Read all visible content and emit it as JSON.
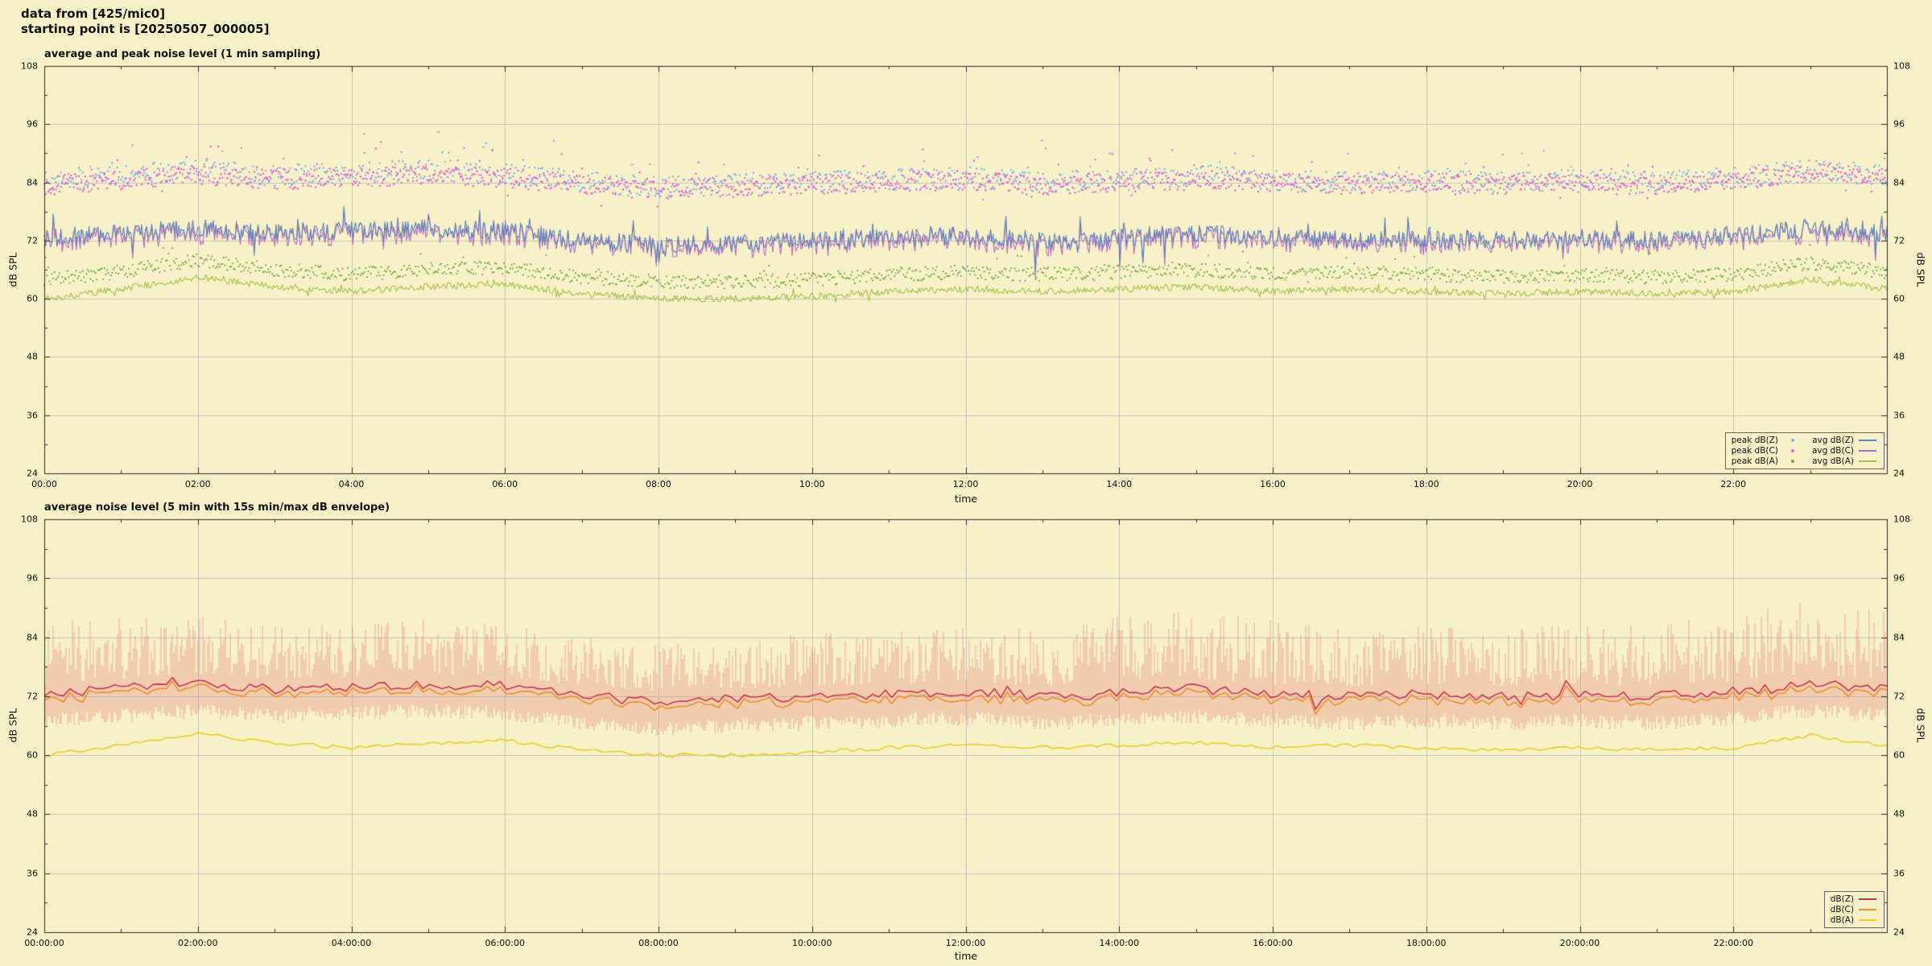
{
  "header": {
    "line1": "data from [425/mic0]",
    "line2": "starting point is [20250507_000005]"
  },
  "layout_colors": {
    "background": "#f8f1c8",
    "grid": "#9aa0b4",
    "frame": "#2b2b2b",
    "text": "#111111"
  },
  "chart_data": [
    {
      "type": "scatter+line",
      "title": "average and peak noise level (1 min sampling)",
      "xlabel": "time",
      "ylabel": "dB SPL",
      "ylim": [
        24,
        108
      ],
      "yticks": [
        24,
        36,
        48,
        60,
        72,
        84,
        96,
        108
      ],
      "x_range_hours": [
        0,
        24
      ],
      "grid": true,
      "legend_position": "bottom-right",
      "xticks": {
        "hours": [
          0,
          2,
          4,
          6,
          8,
          10,
          12,
          14,
          16,
          18,
          20,
          22
        ],
        "labels": [
          "00:00",
          "02:00",
          "04:00",
          "06:00",
          "08:00",
          "10:00",
          "12:00",
          "14:00",
          "16:00",
          "18:00",
          "20:00",
          "22:00"
        ]
      },
      "series": [
        {
          "name": "peak dB(Z)",
          "render": "dots",
          "color": "#7fb2e8",
          "samples": 1440,
          "dot_r": 1.2,
          "noise": 2.2,
          "outlier_chance": 0.05,
          "outlier_max": 7,
          "anchors": [
            84.5,
            85.5,
            86.5,
            85.5,
            86,
            86.5,
            86,
            84,
            83,
            83.5,
            84,
            84.5,
            85,
            84,
            84.5,
            85.5,
            84.5,
            84,
            84.5,
            84,
            84.5,
            84,
            85,
            86.5,
            85.5
          ]
        },
        {
          "name": "peak dB(C)",
          "render": "dots",
          "color": "#ea5fd4",
          "samples": 1440,
          "dot_r": 1.2,
          "noise": 2.0,
          "outlier_chance": 0.05,
          "outlier_max": 6,
          "anchors": [
            83.5,
            84.5,
            85.5,
            84.5,
            85,
            85.5,
            85,
            83.5,
            82.5,
            83,
            83.5,
            84,
            84.5,
            83.5,
            84,
            84.5,
            84,
            83.5,
            84,
            83.5,
            84,
            83.5,
            84.5,
            86,
            85
          ]
        },
        {
          "name": "peak dB(A)",
          "render": "dots",
          "color": "#72a847",
          "samples": 1440,
          "dot_r": 1.1,
          "noise": 1.4,
          "outlier_chance": 0.04,
          "outlier_max": 3.5,
          "anchors": [
            64,
            65.5,
            68,
            66,
            65,
            66,
            66.5,
            64.5,
            63.5,
            63.5,
            64,
            65,
            65.5,
            65,
            65.5,
            66,
            65,
            65.5,
            65,
            64.5,
            65,
            64.5,
            65,
            67.5,
            65.5
          ]
        },
        {
          "name": "avg dB(Z)",
          "render": "line",
          "color": "#5b84b8",
          "samples": 1440,
          "width": 1.1,
          "noise": 1.9,
          "spike_chance": 0.05,
          "spike_amp": 5,
          "anchors": [
            72.5,
            73.5,
            74.5,
            73.5,
            74,
            74.5,
            74,
            72,
            71,
            71.5,
            72,
            72.5,
            73,
            72,
            72.5,
            73.5,
            72.5,
            72,
            72.5,
            72,
            72.5,
            72,
            73,
            74.5,
            73.5
          ]
        },
        {
          "name": "avg dB(C)",
          "render": "line",
          "color": "#bb6cc3",
          "samples": 1440,
          "width": 1.1,
          "noise": 1.1,
          "follow": "avg dB(Z)",
          "offset": -0.6
        },
        {
          "name": "avg dB(A)",
          "render": "line",
          "color": "#a6bf4b",
          "samples": 1440,
          "width": 1.1,
          "noise": 0.7,
          "spike_chance": 0.04,
          "spike_amp": 1.5,
          "anchors": [
            60,
            62,
            64.5,
            62.5,
            61.5,
            62.5,
            63,
            61,
            60,
            60,
            60.5,
            61.5,
            62,
            61.5,
            62,
            62.5,
            61.5,
            62,
            61.5,
            61,
            61.5,
            61,
            61.5,
            64,
            62
          ]
        }
      ]
    },
    {
      "type": "line+envelope",
      "title": "average noise level (5 min with 15s min/max dB envelope)",
      "xlabel": "time",
      "ylabel": "dB SPL",
      "ylim": [
        24,
        108
      ],
      "yticks": [
        24,
        36,
        48,
        60,
        72,
        84,
        96,
        108
      ],
      "x_range_hours": [
        0,
        24
      ],
      "grid": true,
      "legend_position": "bottom-right",
      "xticks": {
        "hours": [
          0,
          2,
          4,
          6,
          8,
          10,
          12,
          14,
          16,
          18,
          20,
          22
        ],
        "labels": [
          "00:00:00",
          "02:00:00",
          "04:00:00",
          "06:00:00",
          "08:00:00",
          "10:00:00",
          "12:00:00",
          "14:00:00",
          "16:00:00",
          "18:00:00",
          "20:00:00",
          "22:00:00"
        ]
      },
      "envelope": {
        "color": "#e2837a",
        "anchors": [
          72.5,
          73.5,
          74.5,
          73.5,
          74,
          74.5,
          74,
          72,
          71,
          71.5,
          72,
          72.5,
          73,
          72,
          72.5,
          73.5,
          72.5,
          72,
          72.5,
          72,
          72.5,
          72,
          73,
          74.5,
          73.5
        ],
        "amp_anchors": [
          13,
          13,
          12,
          11,
          11,
          12,
          11,
          10,
          10,
          10,
          11,
          11,
          11,
          12,
          14,
          14,
          13,
          12,
          12,
          12,
          12,
          13,
          14,
          15,
          14
        ]
      },
      "series": [
        {
          "name": "dB(Z)",
          "render": "line",
          "color": "#c9344e",
          "samples": 288,
          "width": 1.6,
          "noise": 1.0,
          "spike_chance": 0.06,
          "spike_amp": 2.2,
          "anchors": [
            72.5,
            73.5,
            74.5,
            73.5,
            74,
            74.5,
            74,
            72,
            71,
            71.5,
            72,
            72.5,
            73,
            72,
            72.5,
            73.5,
            72.5,
            72,
            72.5,
            72,
            72.5,
            72,
            73,
            74.5,
            73.5
          ]
        },
        {
          "name": "dB(C)",
          "render": "line",
          "color": "#ee8c2e",
          "samples": 288,
          "width": 1.6,
          "noise": 0.35,
          "follow": "dB(Z)",
          "offset": -1.0
        },
        {
          "name": "dB(A)",
          "render": "line",
          "color": "#e9cd2a",
          "samples": 288,
          "width": 1.6,
          "noise": 0.4,
          "anchors": [
            60,
            62,
            64.5,
            62.5,
            61.5,
            62.5,
            63,
            61,
            60,
            60,
            60.5,
            61.5,
            62,
            61.5,
            62,
            62.5,
            61.5,
            62,
            61.5,
            61,
            61.5,
            61,
            61.5,
            64,
            62
          ]
        }
      ]
    }
  ]
}
